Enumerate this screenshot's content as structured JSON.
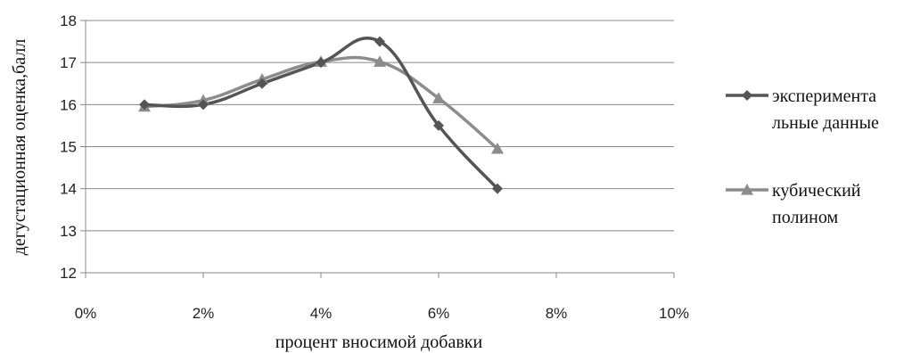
{
  "colors": {
    "experimental": "#555555",
    "cubic": "#8c8c8c",
    "grid": "#888888",
    "axis": "#888888"
  },
  "chart_data": {
    "type": "line",
    "title": "",
    "xlabel": "процент вносимой добавки",
    "ylabel": "дегустационная оценка,балл",
    "xlim": [
      0,
      10
    ],
    "ylim": [
      12,
      18
    ],
    "x_ticks": [
      "0%",
      "2%",
      "4%",
      "6%",
      "8%",
      "10%"
    ],
    "y_ticks": [
      "12",
      "13",
      "14",
      "15",
      "16",
      "17",
      "18"
    ],
    "grid": "horizontal",
    "legend_position": "right",
    "x": [
      1,
      2,
      3,
      4,
      5,
      6,
      7
    ],
    "series": [
      {
        "name": "экспериментальные данные",
        "legend_lines": [
          "эксперимента",
          "льные данные"
        ],
        "marker": "diamond",
        "values": [
          16.0,
          16.0,
          16.5,
          17.0,
          17.5,
          15.5,
          14.0
        ]
      },
      {
        "name": "кубический полином",
        "legend_lines": [
          "кубический",
          "полином"
        ],
        "marker": "triangle",
        "values": [
          15.95,
          16.1,
          16.6,
          17.02,
          17.02,
          16.15,
          14.95
        ]
      }
    ]
  }
}
